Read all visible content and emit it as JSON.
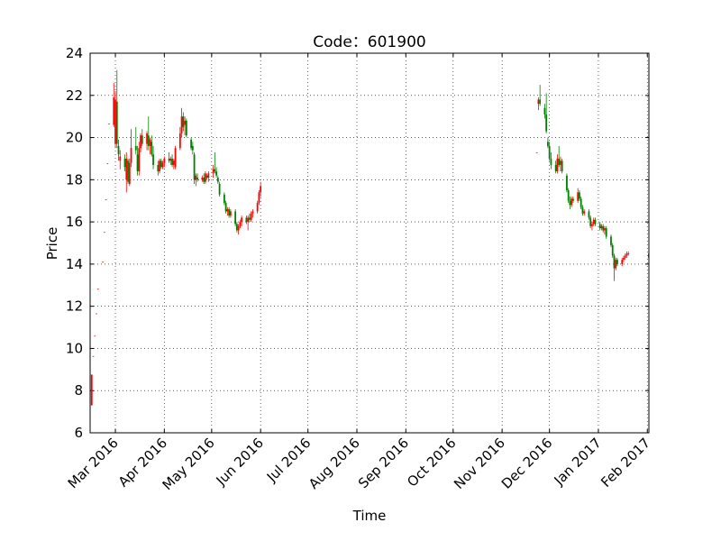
{
  "chart_data": {
    "type": "candlestick",
    "title": "Code：601900",
    "x_label": "Time",
    "y_label": "Price",
    "xlim": [
      736008,
      736362
    ],
    "ylim": [
      6,
      24
    ],
    "xticks": [
      {
        "value": 736024,
        "label": "Mar 2016"
      },
      {
        "value": 736055,
        "label": "Apr 2016"
      },
      {
        "value": 736085,
        "label": "May 2016"
      },
      {
        "value": 736116,
        "label": "Jun 2016"
      },
      {
        "value": 736146,
        "label": "Jul 2016"
      },
      {
        "value": 736177,
        "label": "Aug 2016"
      },
      {
        "value": 736208,
        "label": "Sep 2016"
      },
      {
        "value": 736238,
        "label": "Oct 2016"
      },
      {
        "value": 736269,
        "label": "Nov 2016"
      },
      {
        "value": 736299,
        "label": "Dec 2016"
      },
      {
        "value": 736330,
        "label": "Jan 2017"
      },
      {
        "value": 736361,
        "label": "Feb 2017"
      }
    ],
    "yticks": [
      6,
      8,
      10,
      12,
      14,
      16,
      18,
      20,
      22,
      24
    ],
    "grid": true,
    "colorup": "#ff0000",
    "colordown": "#008000",
    "x": [
      736009,
      736010,
      736011,
      736012,
      736013,
      736016,
      736017,
      736018,
      736019,
      736020,
      736023,
      736024,
      736025,
      736026,
      736027,
      736030,
      736031,
      736032,
      736033,
      736034,
      736037,
      736038,
      736039,
      736040,
      736041,
      736044,
      736045,
      736046,
      736047,
      736048,
      736051,
      736052,
      736053,
      736054,
      736055,
      736058,
      736059,
      736060,
      736061,
      736062,
      736065,
      736066,
      736067,
      736068,
      736069,
      736072,
      736073,
      736074,
      736075,
      736076,
      736079,
      736080,
      736081,
      736082,
      736083,
      736086,
      736087,
      736088,
      736089,
      736090,
      736093,
      736094,
      736095,
      736096,
      736097,
      736100,
      736101,
      736102,
      736103,
      736104,
      736107,
      736108,
      736109,
      736110,
      736111,
      736114,
      736115,
      736116,
      736291,
      736292,
      736293,
      736296,
      736297,
      736298,
      736299,
      736300,
      736303,
      736304,
      736305,
      736306,
      736307,
      736310,
      736311,
      736312,
      736313,
      736314,
      736317,
      736318,
      736319,
      736320,
      736321,
      736324,
      736325,
      736326,
      736327,
      736328,
      736331,
      736332,
      736333,
      736334,
      736335,
      736338,
      736339,
      736340,
      736341,
      736342,
      736345,
      736346,
      736347,
      736348,
      736349,
      736362
    ],
    "open": [
      7.3,
      9.64,
      10.6,
      11.66,
      12.83,
      14.11,
      15.52,
      17.07,
      18.78,
      20.66,
      20.6,
      19.7,
      21.7,
      19.6,
      18.9,
      19.0,
      18.0,
      18.9,
      17.8,
      18.8,
      19.6,
      19.2,
      18.4,
      19.5,
      20.1,
      19.7,
      20.1,
      19.6,
      19.8,
      19.2,
      18.7,
      18.4,
      18.9,
      18.6,
      18.8,
      19.0,
      18.9,
      19.0,
      18.7,
      18.6,
      19.5,
      20.2,
      21.0,
      20.6,
      20.8,
      19.9,
      19.6,
      19.2,
      18.0,
      18.1,
      18.0,
      18.1,
      17.9,
      18.2,
      18.1,
      18.3,
      18.5,
      18.4,
      18.1,
      17.8,
      17.3,
      16.9,
      16.5,
      16.6,
      16.3,
      16.5,
      15.9,
      15.6,
      15.8,
      16.0,
      16.2,
      16.0,
      16.2,
      16.1,
      16.4,
      16.5,
      16.9,
      17.4,
      19.3,
      21.6,
      21.8,
      21.4,
      21.1,
      19.8,
      19.6,
      19.0,
      18.7,
      18.4,
      19.0,
      18.7,
      18.9,
      18.2,
      17.5,
      17.0,
      16.8,
      17.1,
      17.0,
      17.4,
      17.1,
      16.7,
      16.4,
      16.5,
      16.2,
      15.8,
      15.9,
      16.1,
      15.9,
      15.7,
      15.8,
      15.6,
      15.7,
      15.3,
      14.9,
      14.4,
      13.8,
      14.2,
      14.0,
      14.2,
      14.3,
      14.4,
      14.5,
      14.5
    ],
    "high": [
      8.76,
      9.64,
      10.6,
      11.66,
      12.83,
      14.11,
      15.52,
      17.07,
      18.78,
      20.66,
      22.6,
      22.2,
      23.2,
      19.9,
      19.4,
      19.2,
      19.3,
      19.0,
      19.0,
      20.4,
      20.5,
      19.6,
      19.8,
      20.2,
      20.4,
      20.3,
      21.0,
      20.0,
      20.1,
      19.6,
      18.9,
      19.0,
      19.0,
      18.9,
      19.1,
      19.3,
      19.1,
      19.2,
      19.0,
      19.6,
      20.5,
      21.4,
      21.2,
      21.0,
      20.9,
      20.0,
      19.8,
      19.3,
      18.3,
      18.3,
      18.2,
      18.3,
      18.4,
      18.3,
      18.4,
      18.7,
      19.3,
      18.6,
      18.2,
      17.9,
      17.4,
      17.0,
      16.7,
      16.7,
      16.6,
      16.6,
      16.0,
      15.9,
      16.1,
      16.3,
      16.3,
      16.3,
      16.4,
      16.5,
      16.6,
      17.0,
      17.5,
      17.9,
      19.3,
      21.9,
      22.5,
      21.6,
      22.1,
      20.0,
      19.8,
      19.3,
      18.9,
      19.2,
      19.6,
      19.1,
      19.0,
      18.3,
      17.6,
      17.2,
      17.2,
      17.2,
      17.6,
      17.5,
      17.2,
      16.8,
      16.6,
      16.6,
      16.3,
      16.0,
      16.2,
      16.2,
      16.0,
      15.9,
      15.9,
      15.8,
      15.8,
      15.4,
      15.0,
      14.5,
      14.3,
      14.3,
      14.3,
      14.4,
      14.5,
      14.6,
      14.6,
      14.6
    ],
    "low": [
      7.3,
      9.64,
      10.6,
      11.66,
      12.83,
      14.11,
      15.52,
      17.07,
      18.78,
      20.66,
      20.5,
      19.5,
      19.5,
      18.9,
      18.5,
      18.4,
      17.4,
      17.8,
      17.7,
      18.6,
      19.2,
      18.2,
      18.2,
      19.3,
      19.6,
      19.4,
      19.4,
      19.2,
      19.1,
      18.5,
      18.2,
      18.3,
      18.5,
      18.5,
      18.6,
      18.8,
      18.7,
      18.6,
      18.5,
      18.5,
      19.4,
      20.0,
      20.3,
      20.1,
      20.0,
      19.4,
      19.2,
      17.8,
      17.7,
      17.9,
      17.9,
      17.8,
      17.8,
      18.0,
      17.9,
      18.1,
      18.3,
      18.1,
      17.8,
      17.2,
      16.8,
      16.4,
      16.3,
      16.2,
      16.2,
      15.8,
      15.5,
      15.4,
      15.7,
      15.8,
      15.9,
      15.6,
      16.0,
      16.0,
      16.2,
      16.4,
      16.8,
      17.2,
      19.3,
      21.3,
      21.5,
      20.9,
      20.2,
      19.5,
      18.9,
      18.5,
      18.3,
      18.3,
      18.6,
      18.4,
      18.3,
      17.4,
      16.9,
      16.6,
      16.7,
      16.9,
      16.9,
      17.0,
      16.6,
      16.3,
      16.3,
      16.1,
      15.7,
      15.6,
      15.8,
      15.8,
      15.6,
      15.6,
      15.5,
      15.4,
      15.2,
      14.8,
      14.3,
      13.2,
      13.7,
      13.9,
      13.9,
      14.1,
      14.2,
      14.3,
      14.4,
      14.2
    ],
    "close": [
      8.76,
      9.64,
      10.6,
      11.66,
      12.83,
      14.11,
      15.52,
      17.07,
      18.78,
      20.66,
      21.9,
      21.8,
      19.7,
      19.2,
      19.1,
      18.6,
      19.0,
      17.9,
      18.8,
      19.5,
      19.4,
      18.4,
      19.5,
      20.1,
      19.7,
      20.2,
      19.6,
      19.9,
      19.2,
      18.7,
      18.4,
      18.9,
      18.6,
      18.8,
      19.0,
      18.9,
      19.0,
      18.7,
      18.9,
      19.5,
      20.2,
      21.0,
      20.5,
      20.8,
      20.1,
      19.5,
      19.4,
      18.0,
      18.2,
      18.0,
      18.1,
      17.9,
      18.3,
      18.1,
      18.3,
      18.5,
      18.4,
      18.2,
      17.9,
      17.3,
      16.9,
      16.5,
      16.6,
      16.3,
      16.5,
      15.9,
      15.6,
      15.8,
      16.0,
      16.2,
      16.0,
      16.2,
      16.1,
      16.4,
      16.5,
      16.9,
      17.4,
      17.7,
      19.3,
      21.8,
      21.6,
      21.1,
      20.3,
      19.6,
      19.0,
      18.7,
      18.4,
      19.0,
      18.7,
      18.9,
      18.4,
      17.5,
      17.0,
      16.8,
      17.1,
      17.0,
      17.4,
      17.1,
      16.7,
      16.4,
      16.5,
      16.2,
      15.8,
      15.9,
      16.1,
      15.9,
      15.7,
      15.8,
      15.6,
      15.7,
      15.3,
      14.9,
      14.4,
      13.8,
      14.2,
      14.0,
      14.2,
      14.3,
      14.4,
      14.5,
      14.5,
      14.3
    ]
  }
}
